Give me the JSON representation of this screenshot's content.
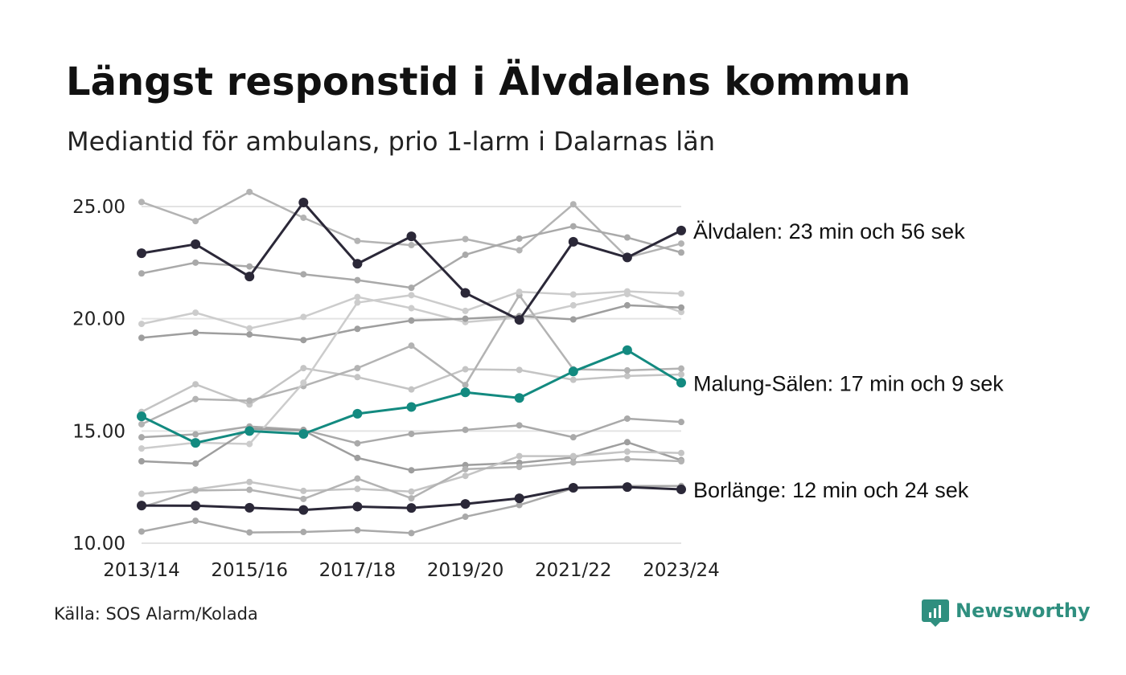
{
  "colors": {
    "background": "#ffffff",
    "grid": "#e3e3e3",
    "text": "#111111",
    "grey_lines": [
      "#b3b3b3",
      "#a9a9a9",
      "#cccccc",
      "#9e9e9e",
      "#c4c4c4"
    ],
    "highlight_dark": "#2b2838",
    "highlight_teal": "#138a80",
    "brand": "#2f8f7f"
  },
  "source": "Källa: SOS Alarm/Kolada",
  "brand": {
    "name": "Newsworthy",
    "icon": "newsworthy-logo-icon"
  },
  "chart_data": {
    "type": "line",
    "title": "Längst responstid i Älvdalens kommun",
    "subtitle": "Mediantid för ambulans, prio 1-larm i Dalarnas län",
    "xlabel": "",
    "ylabel": "",
    "x": [
      "2013/14",
      "2014/15",
      "2015/16",
      "2016/17",
      "2017/18",
      "2018/19",
      "2019/20",
      "2020/21",
      "2021/22",
      "2022/23",
      "2023/24"
    ],
    "x_tick_labels": [
      "2013/14",
      "2015/16",
      "2017/18",
      "2019/20",
      "2021/22",
      "2023/24"
    ],
    "ylim": [
      10,
      25.5
    ],
    "y_ticks": [
      "10.00",
      "15.00",
      "20.00",
      "25.00"
    ],
    "y_tick_values": [
      10,
      15,
      20,
      25
    ],
    "grid": "horizontal",
    "highlighted_series": [
      {
        "name": "Älvdalen",
        "label": "Älvdalen: 23 min och 56 sek",
        "color": "#2b2838",
        "values": [
          22.92,
          23.32,
          21.88,
          25.18,
          22.45,
          23.67,
          21.15,
          19.95,
          23.43,
          22.73,
          23.93
        ]
      },
      {
        "name": "Malung-Sälen",
        "label": "Malung-Sälen: 17 min och 9 sek",
        "color": "#138a80",
        "values": [
          15.65,
          14.47,
          15.0,
          14.87,
          15.77,
          16.07,
          16.72,
          16.47,
          17.65,
          18.6,
          17.15
        ]
      },
      {
        "name": "Borlänge",
        "label": "Borlänge: 12 min och 24 sek",
        "color": "#2b2838",
        "values": [
          11.68,
          11.67,
          11.58,
          11.48,
          11.63,
          11.57,
          11.75,
          12.0,
          12.47,
          12.5,
          12.4
        ]
      }
    ],
    "other_series": [
      {
        "values": [
          25.2,
          24.35,
          25.65,
          24.5,
          23.47,
          23.28,
          23.55,
          23.05,
          25.1,
          22.73,
          23.35
        ]
      },
      {
        "values": [
          22.02,
          22.5,
          22.33,
          21.98,
          21.72,
          21.38,
          22.85,
          23.57,
          24.12,
          23.62,
          22.95
        ]
      },
      {
        "values": [
          19.77,
          20.27,
          19.57,
          20.08,
          20.97,
          20.47,
          19.85,
          20.05,
          20.6,
          21.1,
          20.3
        ]
      },
      {
        "values": [
          19.15,
          19.38,
          19.3,
          19.05,
          19.55,
          19.92,
          20.0,
          20.12,
          19.97,
          20.6,
          20.5
        ]
      },
      {
        "values": [
          15.85,
          17.08,
          16.18,
          17.8,
          17.4,
          16.85,
          17.75,
          17.72,
          17.28,
          17.45,
          17.52
        ]
      },
      {
        "values": [
          15.3,
          16.42,
          16.35,
          17.0,
          17.8,
          18.8,
          17.05,
          21.05,
          17.75,
          17.7,
          17.78
        ]
      },
      {
        "values": [
          14.72,
          14.85,
          15.2,
          15.05,
          14.45,
          14.87,
          15.05,
          15.25,
          14.72,
          15.55,
          15.4
        ]
      },
      {
        "values": [
          14.22,
          14.48,
          14.42,
          17.15,
          20.72,
          21.05,
          20.35,
          21.2,
          21.08,
          21.22,
          21.12
        ]
      },
      {
        "values": [
          13.65,
          13.55,
          15.1,
          15.02,
          13.8,
          13.25,
          13.48,
          13.58,
          13.82,
          14.5,
          13.7
        ]
      },
      {
        "values": [
          12.2,
          12.4,
          12.73,
          12.33,
          12.42,
          12.3,
          13.0,
          13.88,
          13.88,
          14.08,
          14.02
        ]
      },
      {
        "values": [
          11.6,
          12.35,
          12.38,
          11.97,
          12.88,
          12.0,
          13.3,
          13.4,
          13.6,
          13.75,
          13.65
        ]
      },
      {
        "values": [
          10.52,
          11.0,
          10.48,
          10.5,
          10.58,
          10.45,
          11.18,
          11.7,
          12.45,
          12.55,
          12.55
        ]
      }
    ]
  }
}
